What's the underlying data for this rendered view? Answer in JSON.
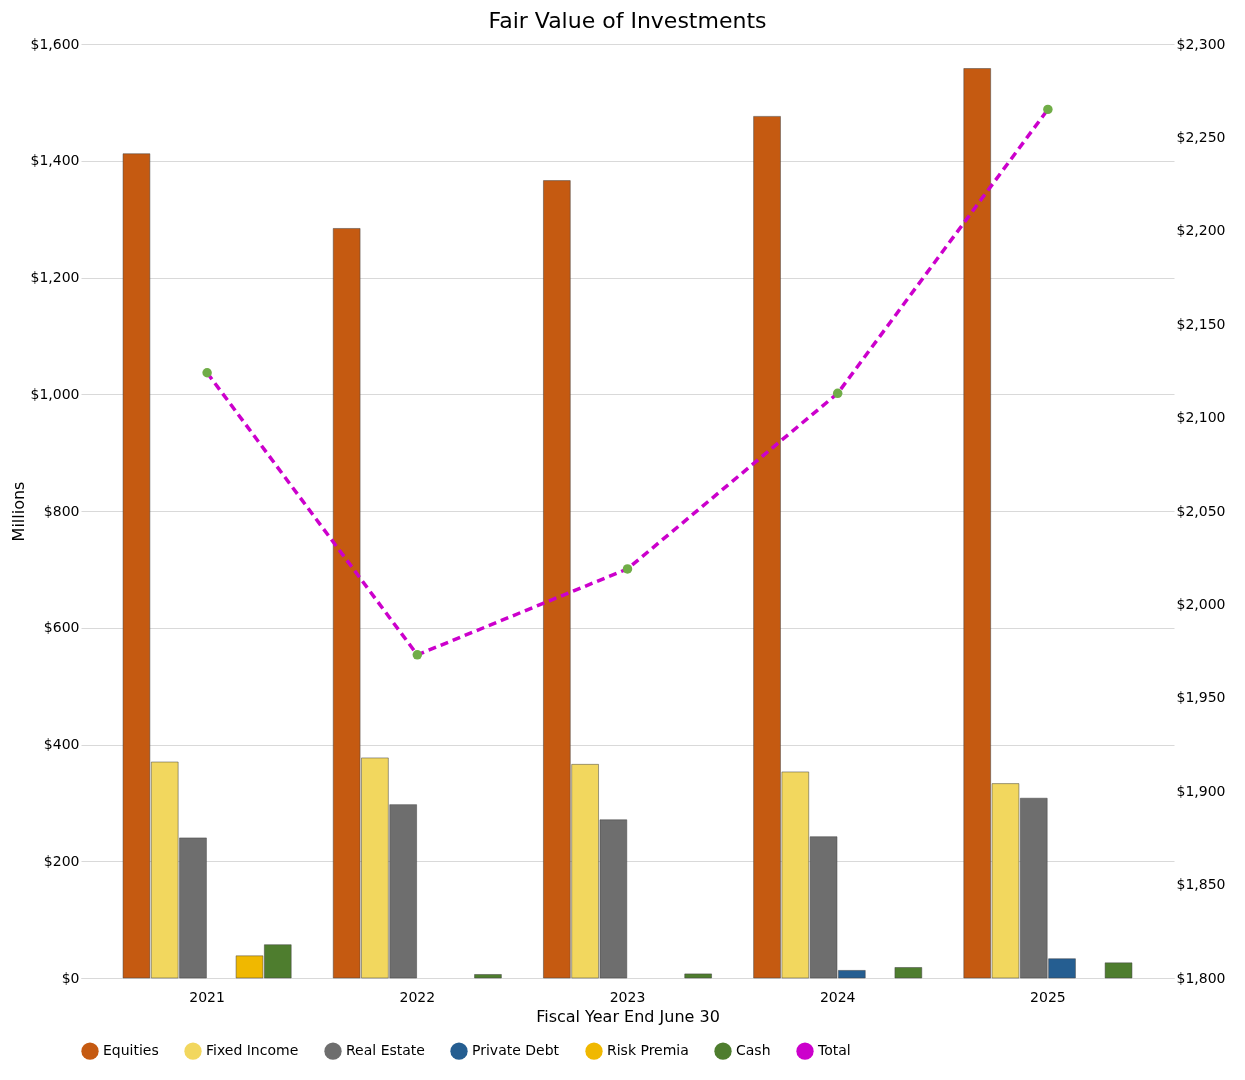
{
  "chart_data": {
    "type": "bar",
    "title": "Fair Value of Investments",
    "xlabel": "Fiscal Year End June 30",
    "ylabel": "Millions",
    "categories": [
      "2021",
      "2022",
      "2023",
      "2024",
      "2025"
    ],
    "series": [
      {
        "name": "Equities",
        "color": "#c55a11",
        "values": [
          1412,
          1284,
          1366,
          1476,
          1558
        ]
      },
      {
        "name": "Fixed Income",
        "color": "#f2d75e",
        "values": [
          370,
          377,
          366,
          353,
          333
        ]
      },
      {
        "name": "Real Estate",
        "color": "#6e6e6e",
        "values": [
          240,
          297,
          271,
          242,
          308
        ]
      },
      {
        "name": "Private Debt",
        "color": "#255e91",
        "values": [
          null,
          null,
          null,
          13,
          33
        ]
      },
      {
        "name": "Risk Premia",
        "color": "#f0b800",
        "values": [
          38,
          null,
          null,
          null,
          null
        ]
      },
      {
        "name": "Cash",
        "color": "#4e7d2e",
        "values": [
          57,
          6,
          7,
          18,
          26
        ]
      },
      {
        "name": "Total",
        "type": "line",
        "axis": "y2",
        "color": "#cc00cc",
        "colors": [
          "#70ad47",
          "#70ad47",
          "#70ad47",
          "#70ad47",
          "#70ad47"
        ],
        "marker": "circle",
        "line_style": "dashed",
        "values": [
          2124,
          1973,
          2019,
          2113,
          2265
        ]
      }
    ],
    "ylim": [
      0,
      1600
    ],
    "yticks": [
      {
        "value": 0,
        "label": "$0"
      },
      {
        "value": 200,
        "label": "$200"
      },
      {
        "value": 400,
        "label": "$400"
      },
      {
        "value": 600,
        "label": "$600"
      },
      {
        "value": 800,
        "label": "$800"
      },
      {
        "value": 1000,
        "label": "$1,000"
      },
      {
        "value": 1200,
        "label": "$1,200"
      },
      {
        "value": 1400,
        "label": "$1,400"
      },
      {
        "value": 1600,
        "label": "$1,600"
      }
    ],
    "y2lim": [
      1800,
      2300
    ],
    "y2ticks": [
      {
        "value": 1800,
        "label": "$1,800"
      },
      {
        "value": 1850,
        "label": "$1,850"
      },
      {
        "value": 1900,
        "label": "$1,900"
      },
      {
        "value": 1950,
        "label": "$1,950"
      },
      {
        "value": 2000,
        "label": "$2,000"
      },
      {
        "value": 2050,
        "label": "$2,050"
      },
      {
        "value": 2100,
        "label": "$2,100"
      },
      {
        "value": 2150,
        "label": "$2,150"
      },
      {
        "value": 2200,
        "label": "$2,200"
      },
      {
        "value": 2250,
        "label": "$2,250"
      },
      {
        "value": 2300,
        "label": "$2,300"
      }
    ],
    "grid": "y",
    "legend": "bottom"
  }
}
